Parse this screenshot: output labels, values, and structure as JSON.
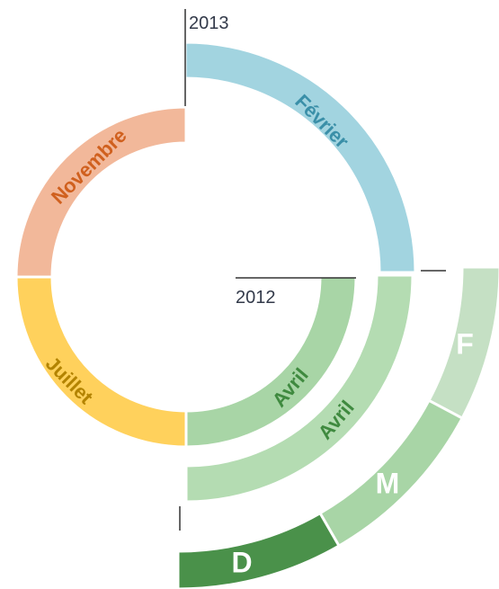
{
  "years": [
    "2013",
    "2012"
  ],
  "segments": [
    {
      "label": "Février"
    },
    {
      "label": "Novembre"
    },
    {
      "label": "Juillet"
    },
    {
      "label": "Avril"
    },
    {
      "label": "Avril"
    },
    {
      "label": "F"
    },
    {
      "label": "M"
    },
    {
      "label": "D"
    }
  ]
}
